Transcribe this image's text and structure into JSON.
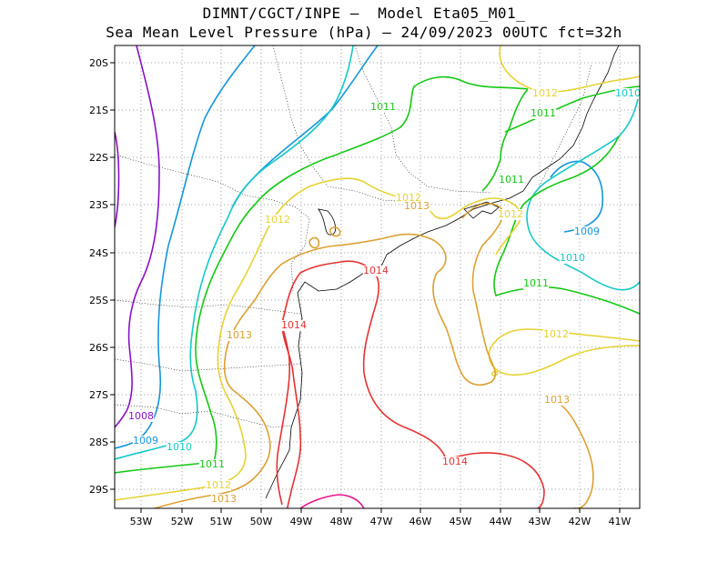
{
  "header": {
    "line1": "DIMNT/CGCT/INPE —  Model Eta05_M01_",
    "line2": "Sea Mean Level Pressure (hPa) — 24/09/2023 00UTC fct=32h"
  },
  "map": {
    "lon_ticks": [
      "53W",
      "52W",
      "51W",
      "50W",
      "49W",
      "48W",
      "47W",
      "46W",
      "45W",
      "44W",
      "43W",
      "42W",
      "41W"
    ],
    "lat_ticks": [
      "20S",
      "21S",
      "22S",
      "23S",
      "24S",
      "25S",
      "26S",
      "27S",
      "28S",
      "29S"
    ],
    "grid": true,
    "contour_colors": {
      "1008": "#8a10c8",
      "1009": "#1496dc",
      "1010": "#14c8c8",
      "1011": "#14c814",
      "1012": "#e6d232",
      "1013": "#dca032",
      "1014": "#e63232",
      "1015": "#e6148c"
    },
    "labels": [
      {
        "text": "1011",
        "color": "1011"
      },
      {
        "text": "1012",
        "color": "1012"
      },
      {
        "text": "1010",
        "color": "1010"
      },
      {
        "text": "1011",
        "color": "1011"
      },
      {
        "text": "1011",
        "color": "1011"
      },
      {
        "text": "1012",
        "color": "1012"
      },
      {
        "text": "1013",
        "color": "1013"
      },
      {
        "text": "1012",
        "color": "1012"
      },
      {
        "text": "1012",
        "color": "1012"
      },
      {
        "text": "1009",
        "color": "1009"
      },
      {
        "text": "1010",
        "color": "1010"
      },
      {
        "text": "1014",
        "color": "1014"
      },
      {
        "text": "1011",
        "color": "1011"
      },
      {
        "text": "1014",
        "color": "1014"
      },
      {
        "text": "1013",
        "color": "1013"
      },
      {
        "text": "1012",
        "color": "1012"
      },
      {
        "text": "1013",
        "color": "1013"
      },
      {
        "text": "1008",
        "color": "1008"
      },
      {
        "text": "1009",
        "color": "1009"
      },
      {
        "text": "1010",
        "color": "1010"
      },
      {
        "text": "1011",
        "color": "1011"
      },
      {
        "text": "1014",
        "color": "1014"
      },
      {
        "text": "1012",
        "color": "1012"
      },
      {
        "text": "1013",
        "color": "1013"
      }
    ]
  }
}
